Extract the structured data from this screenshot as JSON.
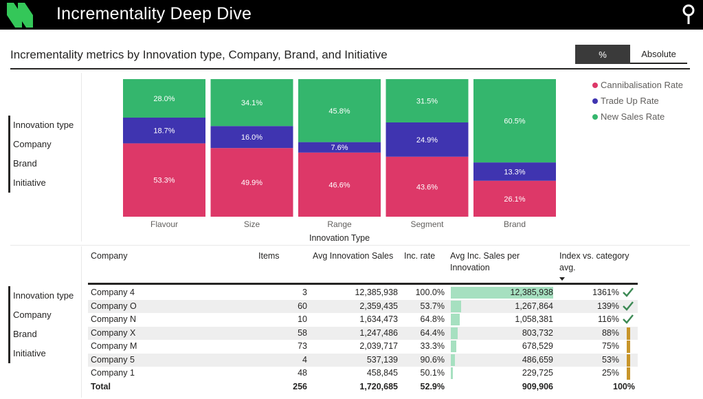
{
  "app": {
    "title": "Incrementality Deep Dive"
  },
  "header": {
    "page_title": "Incrementality metrics by Innovation type, Company, Brand, and Initiative",
    "toggle": {
      "percent_label": "%",
      "absolute_label": "Absolute",
      "selected": "%"
    }
  },
  "slicer_top": [
    "Innovation type",
    "Company",
    "Brand",
    "Initiative"
  ],
  "slicer_bottom": [
    "Innovation type",
    "Company",
    "Brand",
    "Initiative"
  ],
  "colors": {
    "cannibalisation": "#dd3868",
    "trade_up": "#3f34b0",
    "new_sales": "#34b66d",
    "bar_fill": "#a6e0c0",
    "index_bar": "#c8952a",
    "check": "#3d8a55"
  },
  "chart_data": {
    "type": "bar",
    "stacked": true,
    "normalized": "100%",
    "xlabel": "Innovation Type",
    "categories": [
      "Flavour",
      "Size",
      "Range",
      "Segment",
      "Brand"
    ],
    "series": [
      {
        "name": "Cannibalisation Rate",
        "values": [
          53.3,
          49.9,
          46.6,
          43.6,
          26.1
        ],
        "labels": [
          "53.3%",
          "49.9%",
          "46.6%",
          "43.6%",
          "26.1%"
        ]
      },
      {
        "name": "Trade Up Rate",
        "values": [
          18.7,
          16.0,
          7.6,
          24.9,
          13.3
        ],
        "labels": [
          "18.7%",
          "16.0%",
          "7.6%",
          "24.9%",
          "13.3%"
        ]
      },
      {
        "name": "New Sales Rate",
        "values": [
          28.0,
          34.1,
          45.8,
          31.5,
          60.5
        ],
        "labels": [
          "28.0%",
          "34.1%",
          "45.8%",
          "31.5%",
          "60.5%"
        ]
      }
    ],
    "legend_position": "top-right"
  },
  "table": {
    "columns": [
      "Company",
      "Items",
      "Avg Innovation Sales",
      "Inc. rate",
      "Avg Inc. Sales per Innovation",
      "Index vs. category avg."
    ],
    "rows": [
      {
        "company": "Company 4",
        "items": "3",
        "avg_sales": "12,385,938",
        "inc_rate": "100.0%",
        "avg_inc": "12,385,938",
        "avg_inc_value": 12385938,
        "index": "1361%",
        "status": "above"
      },
      {
        "company": "Company O",
        "items": "60",
        "avg_sales": "2,359,435",
        "inc_rate": "53.7%",
        "avg_inc": "1,267,864",
        "avg_inc_value": 1267864,
        "index": "139%",
        "status": "above"
      },
      {
        "company": "Company N",
        "items": "10",
        "avg_sales": "1,634,473",
        "inc_rate": "64.8%",
        "avg_inc": "1,058,381",
        "avg_inc_value": 1058381,
        "index": "116%",
        "status": "above"
      },
      {
        "company": "Company X",
        "items": "58",
        "avg_sales": "1,247,486",
        "inc_rate": "64.4%",
        "avg_inc": "803,732",
        "avg_inc_value": 803732,
        "index": "88%",
        "status": "below"
      },
      {
        "company": "Company M",
        "items": "73",
        "avg_sales": "2,039,717",
        "inc_rate": "33.3%",
        "avg_inc": "678,529",
        "avg_inc_value": 678529,
        "index": "75%",
        "status": "below"
      },
      {
        "company": "Company 5",
        "items": "4",
        "avg_sales": "537,139",
        "inc_rate": "90.6%",
        "avg_inc": "486,659",
        "avg_inc_value": 486659,
        "index": "53%",
        "status": "below"
      },
      {
        "company": "Company 1",
        "items": "48",
        "avg_sales": "458,845",
        "inc_rate": "50.1%",
        "avg_inc": "229,725",
        "avg_inc_value": 229725,
        "index": "25%",
        "status": "below"
      }
    ],
    "total": {
      "label": "Total",
      "items": "256",
      "avg_sales": "1,720,685",
      "inc_rate": "52.9%",
      "avg_inc": "909,906",
      "index": "100%"
    },
    "sort": {
      "column": "Index vs. category avg.",
      "direction": "descending"
    }
  },
  "icons": {
    "logo": "brand-logo-icon",
    "search": "search-icon",
    "check": "check-icon",
    "sort": "sort-descending-icon"
  }
}
